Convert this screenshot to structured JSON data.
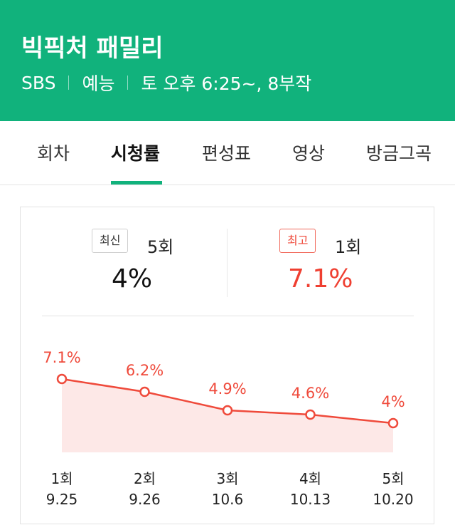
{
  "header": {
    "title": "빅픽처 패밀리",
    "channel": "SBS",
    "genre": "예능",
    "schedule": "토 오후 6:25~, 8부작"
  },
  "tabs": [
    {
      "label": "회차",
      "active": false
    },
    {
      "label": "시청률",
      "active": true
    },
    {
      "label": "편성표",
      "active": false
    },
    {
      "label": "영상",
      "active": false
    },
    {
      "label": "방금그곡",
      "active": false
    }
  ],
  "summary": {
    "latest": {
      "badge": "최신",
      "episode": "5회",
      "value": "4%"
    },
    "best": {
      "badge": "최고",
      "episode": "1회",
      "value": "7.1%"
    }
  },
  "colors": {
    "brand": "#11b27c",
    "accent": "#ef4a3b",
    "area_fill": "#fde8e7"
  },
  "chart_data": {
    "type": "line",
    "categories": [
      "1회",
      "2회",
      "3회",
      "4회",
      "5회"
    ],
    "dates": [
      "9.25",
      "9.26",
      "10.6",
      "10.13",
      "10.20"
    ],
    "values": [
      7.1,
      6.2,
      4.9,
      4.6,
      4.0
    ],
    "value_labels": [
      "7.1%",
      "6.2%",
      "4.9%",
      "4.6%",
      "4%"
    ],
    "unit": "%",
    "title": "",
    "xlabel": "",
    "ylabel": "",
    "area_fill": true,
    "grid": false
  }
}
